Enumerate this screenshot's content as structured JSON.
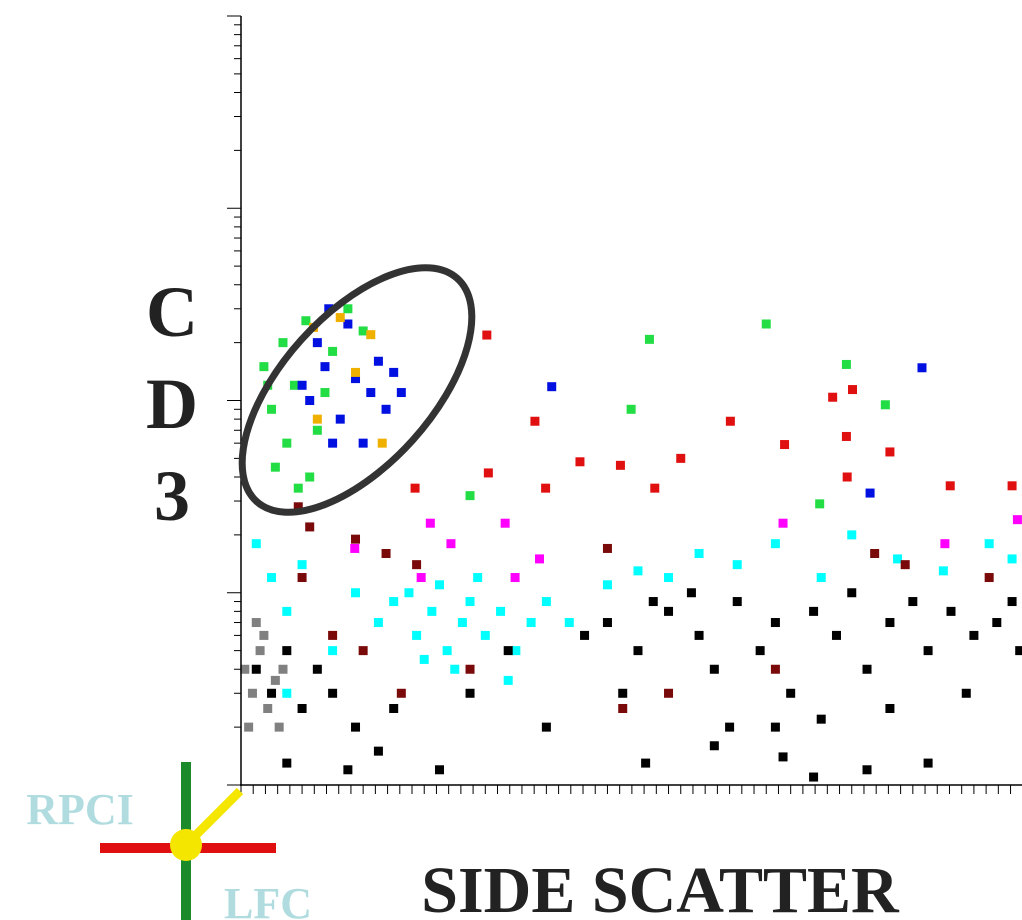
{
  "chart_data": {
    "type": "scatter",
    "ylabel": "CD3",
    "xlabel": "SIDE SCATTER",
    "xlim": [
      0,
      1023
    ],
    "ylim": [
      1,
      10000
    ],
    "log_y": true,
    "xticks": [
      0,
      16,
      32,
      48,
      64,
      80,
      96,
      112,
      128,
      144,
      160,
      176,
      192,
      208,
      224,
      240,
      256,
      272,
      288,
      304,
      320,
      336,
      352,
      368,
      384,
      400,
      416,
      432,
      448,
      464,
      480,
      496,
      512,
      528,
      544,
      560,
      576,
      592,
      608,
      624,
      640,
      656,
      672,
      688,
      704,
      720,
      736,
      752,
      768,
      784,
      800,
      816,
      832,
      848,
      864,
      880,
      896,
      912,
      928,
      944,
      960,
      976,
      992,
      1008
    ],
    "yticks": [
      1,
      2,
      3,
      4,
      5,
      6,
      7,
      8,
      9,
      10,
      20,
      30,
      40,
      50,
      60,
      70,
      80,
      90,
      100,
      200,
      300,
      400,
      500,
      600,
      700,
      800,
      900,
      1000,
      2000,
      3000,
      4000,
      5000,
      6000,
      7000,
      8000,
      9000,
      10000
    ],
    "series": [
      {
        "color": "#808080",
        "x": [
          5,
          15,
          25,
          35,
          45,
          10,
          30,
          55,
          20,
          50
        ],
        "values": [
          4,
          3,
          5,
          2.5,
          3.5,
          2,
          6,
          4,
          7,
          2
        ]
      },
      {
        "color": "#00ffff",
        "x": [
          20,
          40,
          60,
          80,
          150,
          180,
          200,
          230,
          250,
          270,
          290,
          300,
          320,
          340,
          360,
          380,
          260,
          310,
          220,
          400,
          430,
          480,
          520,
          560,
          600,
          650,
          700,
          760,
          800,
          860,
          920,
          980,
          1010,
          280,
          240,
          350,
          120,
          60
        ],
        "values": [
          18,
          12,
          8,
          14,
          10,
          7,
          9,
          6,
          8,
          5,
          7,
          9,
          6,
          8,
          5,
          7,
          11,
          12,
          10,
          9,
          7,
          11,
          13,
          12,
          16,
          14,
          18,
          12,
          20,
          15,
          13,
          18,
          15,
          4,
          4.5,
          3.5,
          5,
          3
        ]
      },
      {
        "color": "#7a0a0a",
        "x": [
          75,
          90,
          150,
          190,
          230,
          480,
          830,
          870,
          980,
          120,
          160,
          210,
          300,
          80,
          500,
          560,
          700
        ],
        "values": [
          28,
          22,
          19,
          16,
          14,
          17,
          16,
          14,
          12,
          6,
          5,
          3,
          4,
          12,
          2.5,
          3,
          4
        ]
      },
      {
        "color": "#000000",
        "x": [
          20,
          40,
          60,
          80,
          100,
          120,
          150,
          200,
          300,
          350,
          450,
          480,
          520,
          560,
          600,
          620,
          650,
          680,
          700,
          720,
          750,
          780,
          800,
          820,
          850,
          880,
          900,
          930,
          960,
          990,
          1010,
          1020,
          500,
          540,
          590,
          640,
          700,
          760,
          850,
          60,
          140,
          180,
          260,
          530,
          620,
          710,
          750,
          820,
          900,
          400,
          950
        ],
        "values": [
          4,
          3,
          5,
          2.5,
          4,
          3,
          2,
          2.5,
          3,
          5,
          6,
          7,
          5,
          8,
          6,
          4,
          9,
          5,
          7,
          3,
          8,
          6,
          10,
          4,
          7,
          9,
          5,
          8,
          6,
          7,
          9,
          5,
          3,
          9,
          10,
          2,
          2,
          2.2,
          2.5,
          1.3,
          1.2,
          1.5,
          1.2,
          1.3,
          1.6,
          1.4,
          1.1,
          1.2,
          1.3,
          2,
          3
        ]
      },
      {
        "color": "#ff00ff",
        "x": [
          248,
          275,
          346,
          236,
          391,
          710,
          922,
          1017,
          149,
          359
        ],
        "values": [
          23,
          18,
          23,
          12,
          15,
          23,
          18,
          24,
          17,
          12
        ]
      },
      {
        "color": "#e01010",
        "x": [
          322,
          385,
          444,
          497,
          576,
          641,
          712,
          775,
          801,
          793,
          850,
          794,
          929,
          1010,
          324,
          399,
          542,
          228
        ],
        "values": [
          219,
          78,
          48,
          46,
          50,
          78,
          59,
          104,
          114,
          65,
          54,
          40,
          36,
          36,
          42,
          35,
          35,
          35
        ]
      },
      {
        "color": "#22dd44",
        "x": [
          30,
          40,
          55,
          70,
          85,
          100,
          60,
          120,
          45,
          90,
          140,
          110,
          35,
          75,
          160,
          535,
          688,
          793,
          844,
          511,
          300,
          758
        ],
        "values": [
          150,
          90,
          200,
          120,
          260,
          70,
          60,
          180,
          45,
          40,
          300,
          110,
          120,
          35,
          230,
          208,
          250,
          154,
          95,
          90,
          32,
          29
        ]
      },
      {
        "color": "#0010e0",
        "x": [
          90,
          110,
          130,
          150,
          170,
          190,
          120,
          100,
          140,
          180,
          160,
          200,
          80,
          210,
          115,
          407,
          892,
          824
        ],
        "values": [
          100,
          150,
          80,
          130,
          110,
          90,
          60,
          200,
          250,
          160,
          60,
          140,
          120,
          110,
          300,
          118,
          148,
          33
        ]
      },
      {
        "color": "#f0b000",
        "x": [
          95,
          130,
          170,
          150,
          100,
          185
        ],
        "values": [
          240,
          270,
          220,
          140,
          80,
          60
        ]
      }
    ]
  },
  "logo": {
    "top": "RPCI",
    "bottom": "LFC"
  }
}
